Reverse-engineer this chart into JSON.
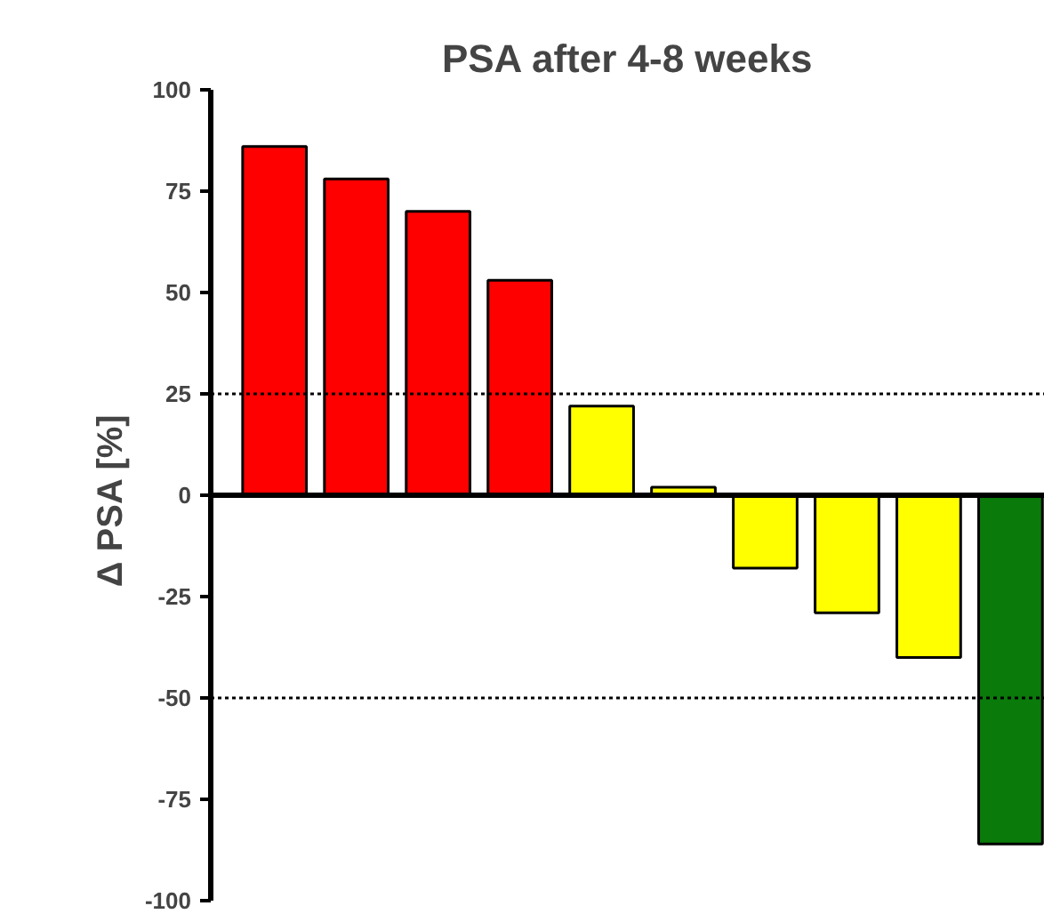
{
  "chart_data": {
    "type": "bar",
    "title": "PSA after 4-8 weeks",
    "ylabel": "Δ PSA  [%]",
    "categories": [
      null,
      null,
      null,
      null,
      null,
      null,
      null,
      null,
      null,
      null
    ],
    "values": [
      86,
      78,
      70,
      53,
      22,
      2,
      -18,
      -29,
      -40,
      -86
    ],
    "colors": [
      "#ff0000",
      "#ff0000",
      "#ff0000",
      "#ff0000",
      "#ffff00",
      "#ffff00",
      "#ffff00",
      "#ffff00",
      "#ffff00",
      "#0a7a0a"
    ],
    "ylim": [
      -100,
      100
    ],
    "yticks": [
      100,
      75,
      50,
      25,
      0,
      -25,
      -50,
      -75,
      -100
    ],
    "grid": false,
    "tick_labels": "y",
    "ref_lines": [
      {
        "axis": "y",
        "value": 25,
        "line_style": "dotted"
      },
      {
        "axis": "y",
        "value": -50,
        "line_style": "dotted"
      }
    ]
  }
}
